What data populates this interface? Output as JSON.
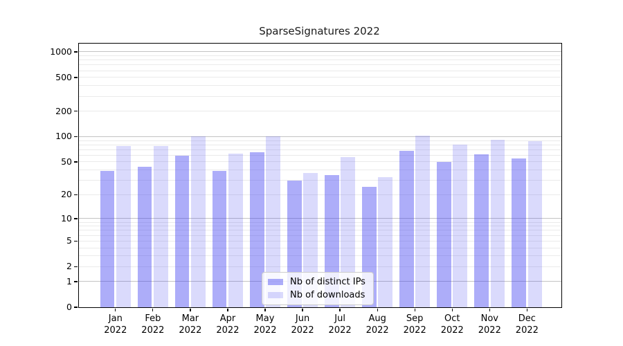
{
  "chart_data": {
    "type": "bar",
    "title": "SparseSignatures 2022",
    "categories": [
      "Jan",
      "Feb",
      "Mar",
      "Apr",
      "May",
      "Jun",
      "Jul",
      "Aug",
      "Sep",
      "Oct",
      "Nov",
      "Dec"
    ],
    "year_label": "2022",
    "series": [
      {
        "name": "Nb of distinct IPs",
        "color": "rgba(60,60,240,0.42)",
        "values": [
          39,
          44,
          59,
          39,
          65,
          30,
          35,
          25,
          68,
          50,
          62,
          55
        ]
      },
      {
        "name": "Nb of downloads",
        "color": "rgba(60,60,240,0.19)",
        "values": [
          78,
          78,
          101,
          63,
          101,
          37,
          57,
          33,
          102,
          81,
          91,
          89
        ]
      }
    ],
    "yscale": "log1p",
    "yticks": [
      0,
      1,
      2,
      5,
      10,
      20,
      50,
      100,
      200,
      500,
      1000
    ],
    "ylim": [
      0,
      1250
    ],
    "xlabel": "",
    "ylabel": "",
    "grid": true,
    "legend_position": "lower center",
    "axis_color": "#000000",
    "major_grid_color": "#c3c3c3",
    "minor_grid_color": "#eaeaea"
  }
}
